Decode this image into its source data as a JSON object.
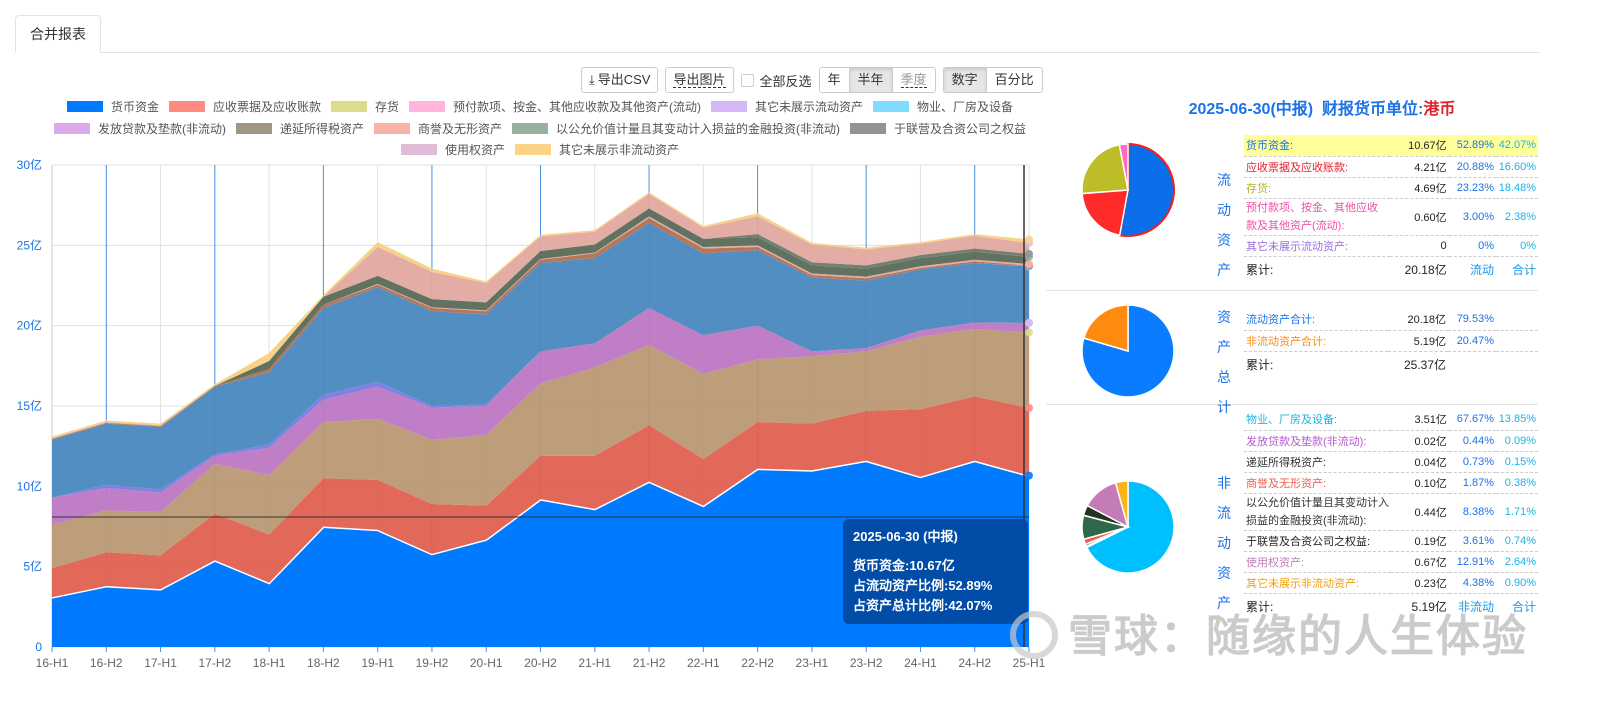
{
  "tabs": [
    {
      "label": "合并报表",
      "active": true
    }
  ],
  "toolbar": {
    "export_csv": "导出CSV",
    "export_image": "导出图片",
    "invert_select": "全部反选",
    "period_options": [
      {
        "label": "年",
        "active": false
      },
      {
        "label": "半年",
        "active": true
      },
      {
        "label": "季度",
        "active": false,
        "muted": true
      }
    ],
    "mode_options": [
      {
        "label": "数字",
        "active": true
      },
      {
        "label": "百分比",
        "active": false
      }
    ]
  },
  "tooltip": {
    "title": "2025-06-30 (中报)",
    "line1": "货币资金:10.67亿",
    "line2": "占流动资产比例:52.89%",
    "line3": "占资产总计比例:42.07%"
  },
  "chart_data": {
    "type": "area",
    "stacked": true,
    "title": "",
    "xlabel": "",
    "ylabel": "",
    "ylim": [
      0,
      30
    ],
    "y_unit": "亿",
    "y_ticks": [
      "0",
      "5亿",
      "10亿",
      "15亿",
      "20亿",
      "25亿",
      "30亿"
    ],
    "grid": true,
    "legend_position": "top",
    "categories": [
      "16-H1",
      "16-H2",
      "17-H1",
      "17-H2",
      "18-H1",
      "18-H2",
      "19-H1",
      "19-H2",
      "20-H1",
      "20-H2",
      "21-H1",
      "21-H2",
      "22-H1",
      "22-H2",
      "23-H1",
      "23-H2",
      "24-H1",
      "24-H2",
      "25-H1"
    ],
    "highlight_category": "25-H1",
    "series": [
      {
        "name": "货币资金",
        "color": "#007bff",
        "values": [
          3.1,
          3.8,
          3.6,
          5.4,
          4.0,
          7.5,
          7.3,
          5.8,
          6.7,
          9.2,
          8.6,
          10.3,
          8.8,
          11.1,
          11.0,
          11.6,
          10.6,
          11.6,
          10.67
        ]
      },
      {
        "name": "应收票据及应收账款",
        "color": "#ff8a80",
        "values": [
          1.8,
          2.1,
          2.1,
          2.9,
          3.0,
          3.0,
          3.1,
          3.1,
          2.1,
          2.7,
          3.3,
          3.5,
          2.9,
          2.9,
          2.9,
          3.1,
          4.2,
          4.0,
          4.21
        ]
      },
      {
        "name": "存货",
        "color": "#dcdc8c",
        "values": [
          2.7,
          2.6,
          2.7,
          3.1,
          3.7,
          3.5,
          3.8,
          4.0,
          4.4,
          4.5,
          5.5,
          5.0,
          5.3,
          3.9,
          4.2,
          3.7,
          4.5,
          4.2,
          4.69
        ]
      },
      {
        "name": "预付款项、按金、其他应收款及其他资产(流动)",
        "color": "#ffb3dd",
        "values": [
          1.7,
          1.4,
          1.2,
          0.5,
          1.7,
          1.4,
          2.0,
          2.0,
          1.8,
          2.0,
          1.5,
          2.3,
          2.4,
          2.1,
          0.3,
          0.2,
          0.4,
          0.4,
          0.6
        ]
      },
      {
        "name": "其它未展示流动资产",
        "color": "#d3b8f5",
        "values": [
          0,
          0.2,
          0.2,
          0.1,
          0.2,
          0.3,
          0.3,
          0.1,
          0.1,
          0,
          0,
          0,
          0,
          0,
          0,
          0,
          0,
          0,
          0
        ]
      },
      {
        "name": "物业、厂房及设备",
        "color": "#7fdcff",
        "values": [
          3.6,
          3.8,
          3.9,
          4.2,
          4.5,
          5.4,
          5.9,
          5.9,
          5.6,
          5.5,
          5.3,
          5.3,
          5.1,
          4.7,
          4.6,
          4.2,
          3.8,
          3.7,
          3.51
        ]
      },
      {
        "name": "发放贷款及垫款(非流动)",
        "color": "#dda8e8",
        "values": [
          0,
          0,
          0,
          0,
          0,
          0,
          0,
          0,
          0,
          0,
          0,
          0,
          0,
          0,
          0,
          0,
          0,
          0,
          0.02
        ]
      },
      {
        "name": "递延所得税资产",
        "color": "#a39584",
        "values": [
          0.05,
          0.05,
          0.05,
          0.05,
          0.2,
          0.2,
          0.15,
          0.2,
          0.2,
          0.2,
          0.3,
          0.3,
          0.3,
          0.2,
          0.15,
          0.15,
          0.1,
          0.1,
          0.04
        ]
      },
      {
        "name": "商誉及无形资产",
        "color": "#f7b3a6",
        "values": [
          0.05,
          0.05,
          0.05,
          0.0,
          0.0,
          0.0,
          0.05,
          0.05,
          0.05,
          0.05,
          0.05,
          0.1,
          0.1,
          0.1,
          0.1,
          0.1,
          0.1,
          0.1,
          0.1
        ]
      },
      {
        "name": "以公允价值计量且其变动计入损益的金融投资(非流动)",
        "color": "#96b19f",
        "values": [
          0,
          0,
          0,
          0,
          0.5,
          0.5,
          0.5,
          0.5,
          0.5,
          0.5,
          0.5,
          0.5,
          0.5,
          0.5,
          0.5,
          0.5,
          0.5,
          0.5,
          0.44
        ]
      },
      {
        "name": "于联营及合资公司之权益",
        "color": "#949494",
        "values": [
          0,
          0,
          0,
          0,
          0,
          0,
          0,
          0,
          0,
          0,
          0,
          0,
          0,
          0.2,
          0.2,
          0.2,
          0.2,
          0.2,
          0.19
        ]
      },
      {
        "name": "使用权资产",
        "color": "#e0bcd8",
        "values": [
          0,
          0,
          0,
          0,
          0,
          0,
          1.8,
          1.7,
          1.2,
          0.9,
          0.8,
          0.9,
          0.7,
          1.1,
          1.1,
          1.0,
          0.7,
          0.8,
          0.67
        ]
      },
      {
        "name": "其它未展示非流动资产",
        "color": "#fad387",
        "values": [
          0.1,
          0.1,
          0.1,
          0.1,
          0.5,
          0.1,
          0.3,
          0.2,
          0.1,
          0.1,
          0.1,
          0.1,
          0.1,
          0.2,
          0.1,
          0.1,
          0.1,
          0.1,
          0.23
        ]
      }
    ]
  },
  "right_panel": {
    "title_date": "2025-06-30(中报)",
    "title_unit_label": "财报货币单位:",
    "title_unit_value": "港币",
    "current": {
      "label": "流动资产",
      "rows": [
        {
          "name": "货币资金:",
          "value": "10.67亿",
          "pct_current": "52.89%",
          "pct_total": "42.07%",
          "color": "#1a73e8",
          "highlight": true
        },
        {
          "name": "应收票据及应收账款:",
          "value": "4.21亿",
          "pct_current": "20.88%",
          "pct_total": "16.60%",
          "color": "#e8202c"
        },
        {
          "name": "存货:",
          "value": "4.69亿",
          "pct_current": "23.23%",
          "pct_total": "18.48%",
          "color": "#b4b428"
        },
        {
          "name": "预付款项、按金、其他应收款及其他资产(流动):",
          "value": "0.60亿",
          "pct_current": "3.00%",
          "pct_total": "2.38%",
          "color": "#f050a8"
        },
        {
          "name": "其它未展示流动资产:",
          "value": "0",
          "pct_current": "0%",
          "pct_total": "0%",
          "color": "#9a6ee0"
        }
      ],
      "total_label": "累计:",
      "total_value": "20.18亿",
      "total_col1": "流动",
      "total_col2": "合计",
      "pie": [
        {
          "name": "货币资金",
          "value": 52.89,
          "color": "#0a6ee8"
        },
        {
          "name": "应收票据及应收账款",
          "value": 20.88,
          "color": "#ff2a2a"
        },
        {
          "name": "存货",
          "value": 23.23,
          "color": "#bdbd28"
        },
        {
          "name": "预付款项",
          "value": 3.0,
          "color": "#ff6ac0"
        }
      ]
    },
    "total": {
      "label": "资产总计",
      "rows": [
        {
          "name": "流动资产合计:",
          "value": "20.18亿",
          "pct_current": "79.53%",
          "color": "#1a73e8"
        },
        {
          "name": "非流动资产合计:",
          "value": "5.19亿",
          "pct_current": "20.47%",
          "color": "#ff8a10"
        }
      ],
      "total_label": "累计:",
      "total_value": "25.37亿",
      "pie": [
        {
          "name": "流动资产合计",
          "value": 79.53,
          "color": "#0a7cff"
        },
        {
          "name": "非流动资产合计",
          "value": 20.47,
          "color": "#ff8a10"
        }
      ]
    },
    "noncurrent": {
      "label": "非流动资产",
      "rows": [
        {
          "name": "物业、厂房及设备:",
          "value": "3.51亿",
          "pct_current": "67.67%",
          "pct_total": "13.85%",
          "color": "#1ab4e8"
        },
        {
          "name": "发放贷款及垫款(非流动):",
          "value": "0.02亿",
          "pct_current": "0.44%",
          "pct_total": "0.09%",
          "color": "#b45ad0"
        },
        {
          "name": "递延所得税资产:",
          "value": "0.04亿",
          "pct_current": "0.73%",
          "pct_total": "0.15%",
          "color": "#333333"
        },
        {
          "name": "商誉及无形资产:",
          "value": "0.10亿",
          "pct_current": "1.87%",
          "pct_total": "0.38%",
          "color": "#f06050"
        },
        {
          "name": "以公允价值计量且其变动计入损益的金融投资(非流动):",
          "value": "0.44亿",
          "pct_current": "8.38%",
          "pct_total": "1.71%",
          "color": "#333333"
        },
        {
          "name": "于联营及合资公司之权益:",
          "value": "0.19亿",
          "pct_current": "3.61%",
          "pct_total": "0.74%",
          "color": "#222222"
        },
        {
          "name": "使用权资产:",
          "value": "0.67亿",
          "pct_current": "12.91%",
          "pct_total": "2.64%",
          "color": "#c080b8"
        },
        {
          "name": "其它未展示非流动资产:",
          "value": "0.23亿",
          "pct_current": "4.38%",
          "pct_total": "0.90%",
          "color": "#f0a010"
        }
      ],
      "total_label": "累计:",
      "total_value": "5.19亿",
      "total_col1": "非流动",
      "total_col2": "合计",
      "pie": [
        {
          "name": "物业、厂房及设备",
          "value": 67.67,
          "color": "#00bfff"
        },
        {
          "name": "发放贷款及垫款",
          "value": 0.44,
          "color": "#c060d0"
        },
        {
          "name": "递延所得税资产",
          "value": 0.73,
          "color": "#444444"
        },
        {
          "name": "商誉及无形资产",
          "value": 1.87,
          "color": "#f06050"
        },
        {
          "name": "金融投资",
          "value": 8.38,
          "color": "#2e6a4a"
        },
        {
          "name": "于联营及合资公司之权益",
          "value": 3.61,
          "color": "#223322"
        },
        {
          "name": "使用权资产",
          "value": 12.91,
          "color": "#c47cb8"
        },
        {
          "name": "其它未展示非流动资产",
          "value": 4.38,
          "color": "#fbb31a"
        }
      ]
    }
  },
  "watermark": "雪球：随缘的人生体验"
}
